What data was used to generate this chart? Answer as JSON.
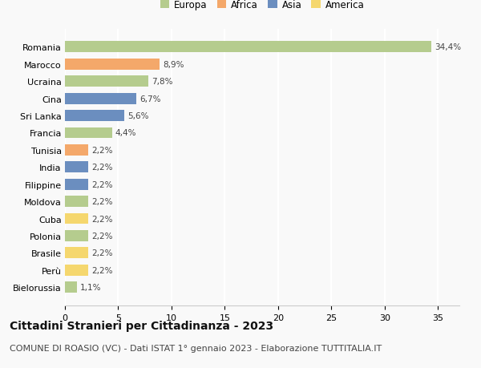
{
  "categories": [
    "Romania",
    "Marocco",
    "Ucraina",
    "Cina",
    "Sri Lanka",
    "Francia",
    "Tunisia",
    "India",
    "Filippine",
    "Moldova",
    "Cuba",
    "Polonia",
    "Brasile",
    "Perù",
    "Bielorussia"
  ],
  "values": [
    34.4,
    8.9,
    7.8,
    6.7,
    5.6,
    4.4,
    2.2,
    2.2,
    2.2,
    2.2,
    2.2,
    2.2,
    2.2,
    2.2,
    1.1
  ],
  "labels": [
    "34,4%",
    "8,9%",
    "7,8%",
    "6,7%",
    "5,6%",
    "4,4%",
    "2,2%",
    "2,2%",
    "2,2%",
    "2,2%",
    "2,2%",
    "2,2%",
    "2,2%",
    "2,2%",
    "1,1%"
  ],
  "colors": [
    "#b5cc8e",
    "#f4a86a",
    "#b5cc8e",
    "#6b8ebf",
    "#6b8ebf",
    "#b5cc8e",
    "#f4a86a",
    "#6b8ebf",
    "#6b8ebf",
    "#b5cc8e",
    "#f5d76e",
    "#b5cc8e",
    "#f5d76e",
    "#f5d76e",
    "#b5cc8e"
  ],
  "legend_labels": [
    "Europa",
    "Africa",
    "Asia",
    "America"
  ],
  "legend_colors": [
    "#b5cc8e",
    "#f4a86a",
    "#6b8ebf",
    "#f5d76e"
  ],
  "xlim": [
    0,
    37
  ],
  "xticks": [
    0,
    5,
    10,
    15,
    20,
    25,
    30,
    35
  ],
  "title": "Cittadini Stranieri per Cittadinanza - 2023",
  "subtitle": "COMUNE DI ROASIO (VC) - Dati ISTAT 1° gennaio 2023 - Elaborazione TUTTITALIA.IT",
  "title_fontsize": 10,
  "subtitle_fontsize": 8,
  "bar_height": 0.65,
  "background_color": "#f9f9f9",
  "grid_color": "#ffffff",
  "label_fontsize": 7.5,
  "tick_fontsize": 8,
  "legend_fontsize": 8.5
}
